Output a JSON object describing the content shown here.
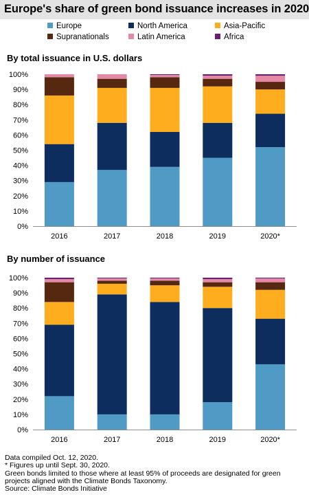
{
  "title": "Europe's share of green bond issuance increases in 2020",
  "legend": [
    {
      "label": "Europe",
      "color": "#4f9bc6"
    },
    {
      "label": "North America",
      "color": "#0d2d5e"
    },
    {
      "label": "Asia-Pacific",
      "color": "#fdad1d"
    },
    {
      "label": "Supranationals",
      "color": "#56280f"
    },
    {
      "label": "Latin America",
      "color": "#e48aa6"
    },
    {
      "label": "Africa",
      "color": "#6b1f6e"
    }
  ],
  "chart_data": [
    {
      "type": "bar",
      "stacked": true,
      "title": "By total issuance in U.S. dollars",
      "categories": [
        "2016",
        "2017",
        "2018",
        "2019",
        "2020*"
      ],
      "ylim": [
        0,
        100
      ],
      "yticks": [
        "0%",
        "10%",
        "20%",
        "30%",
        "40%",
        "50%",
        "60%",
        "70%",
        "80%",
        "90%",
        "100%"
      ],
      "series": [
        {
          "name": "Europe",
          "values": [
            29,
            37,
            39,
            45,
            52
          ]
        },
        {
          "name": "North America",
          "values": [
            25,
            31,
            23,
            23,
            22
          ]
        },
        {
          "name": "Asia-Pacific",
          "values": [
            32,
            23,
            29,
            24,
            16
          ]
        },
        {
          "name": "Supranationals",
          "values": [
            12,
            6,
            7,
            5,
            5
          ]
        },
        {
          "name": "Latin America",
          "values": [
            2,
            3,
            1.5,
            2,
            4
          ]
        },
        {
          "name": "Africa",
          "values": [
            0,
            0,
            0.5,
            1,
            1
          ]
        }
      ]
    },
    {
      "type": "bar",
      "stacked": true,
      "title": "By number of issuance",
      "categories": [
        "2016",
        "2017",
        "2018",
        "2019",
        "2020*"
      ],
      "ylim": [
        0,
        100
      ],
      "yticks": [
        "0%",
        "10%",
        "20%",
        "30%",
        "40%",
        "50%",
        "60%",
        "70%",
        "80%",
        "90%",
        "100%"
      ],
      "series": [
        {
          "name": "Europe",
          "values": [
            22,
            10,
            10,
            18,
            43
          ]
        },
        {
          "name": "North America",
          "values": [
            47,
            79,
            74,
            62,
            30
          ]
        },
        {
          "name": "Asia-Pacific",
          "values": [
            15,
            7,
            11,
            14,
            19
          ]
        },
        {
          "name": "Supranationals",
          "values": [
            13,
            2,
            3,
            3,
            5
          ]
        },
        {
          "name": "Latin America",
          "values": [
            2,
            1.5,
            1.5,
            2,
            2.5
          ]
        },
        {
          "name": "Africa",
          "values": [
            1,
            0.5,
            0.5,
            1,
            0.5
          ]
        }
      ]
    }
  ],
  "notes": [
    "Data compiled Oct. 12, 2020.",
    "* Figures up until Sept. 30, 2020.",
    "Green bonds limited to those where at least 95% of proceeds are designated for green",
    "projects aligned with the Climate Bonds Taxonomy.",
    "Source: Climate Bonds Initiative"
  ]
}
